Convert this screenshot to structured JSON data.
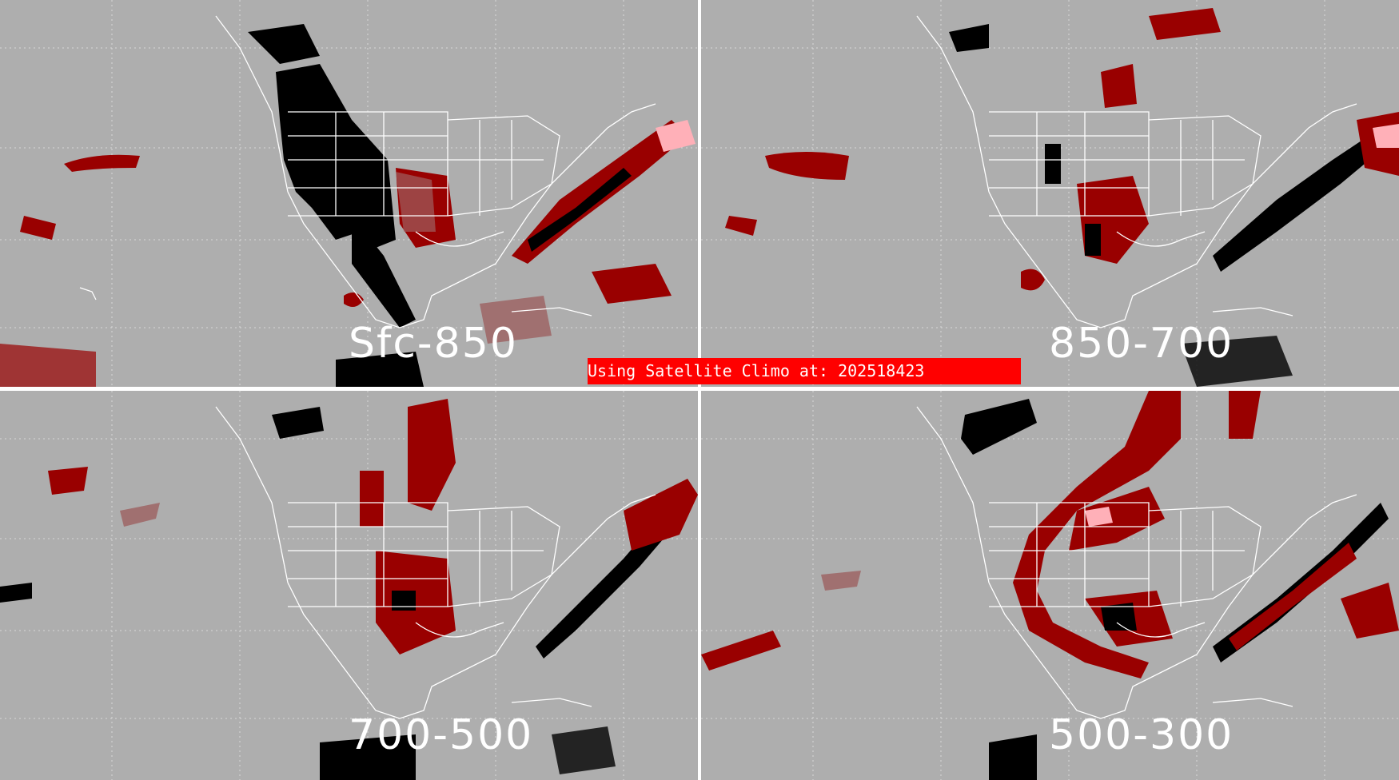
{
  "panels": [
    {
      "id": "p1",
      "label": "Sfc-850"
    },
    {
      "id": "p2",
      "label": "850-700"
    },
    {
      "id": "p3",
      "label": "700-500"
    },
    {
      "id": "p4",
      "label": "500-300"
    }
  ],
  "banner": {
    "text": "Using Satellite Climo at: 202518423"
  },
  "colors": {
    "background": "#aeaeae",
    "dark_red": "#990000",
    "red": "#cc0000",
    "rose": "#a07070",
    "pink": "#ffb0b8",
    "black": "#000000",
    "boundary": "#ffffff"
  }
}
